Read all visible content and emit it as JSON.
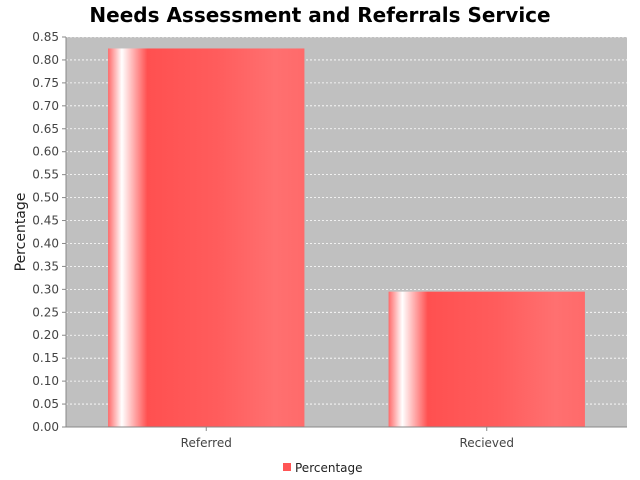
{
  "chart_data": {
    "type": "bar",
    "title": "Needs Assessment and Referrals Service",
    "xlabel": "",
    "ylabel": "Percentage",
    "categories": [
      "Referred",
      "Recieved"
    ],
    "series": [
      {
        "name": "Percentage",
        "values": [
          0.825,
          0.295
        ]
      }
    ],
    "ylim": [
      0,
      0.85
    ],
    "yticks": [
      "0.00",
      "0.05",
      "0.10",
      "0.15",
      "0.20",
      "0.25",
      "0.30",
      "0.35",
      "0.40",
      "0.45",
      "0.50",
      "0.55",
      "0.60",
      "0.65",
      "0.70",
      "0.75",
      "0.80",
      "0.85"
    ],
    "grid": true,
    "legend_position": "bottom",
    "colors": {
      "bar": "#ff5555",
      "plot_background": "#c0c0c0",
      "gridline": "#ffffff"
    }
  }
}
